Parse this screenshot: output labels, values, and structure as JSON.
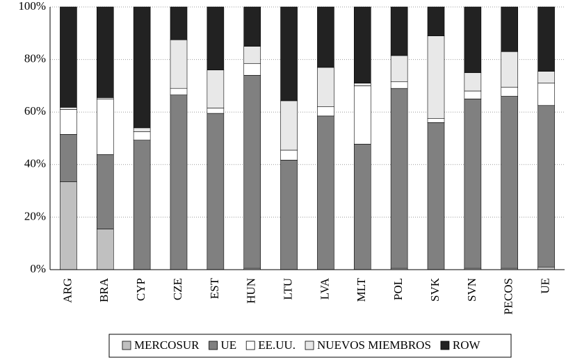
{
  "chart_data": {
    "type": "stacked_bar_percent",
    "categories": [
      "ARG",
      "BRA",
      "CYP",
      "CZE",
      "EST",
      "HUN",
      "LTU",
      "LVA",
      "MLT",
      "POL",
      "SVK",
      "SVN",
      "PECOS",
      "UE"
    ],
    "series": [
      {
        "name": "MERCOSUR",
        "color": "#c0c0c0",
        "values": [
          33.5,
          15.5,
          0,
          0,
          0,
          0.5,
          0,
          0,
          0,
          0.5,
          0,
          0.5,
          0.5,
          1
        ]
      },
      {
        "name": "UE",
        "color": "#808080",
        "values": [
          18,
          28.3,
          49.3,
          66.5,
          59.5,
          73.5,
          41.7,
          58.5,
          47.8,
          68.5,
          56,
          64.5,
          65.5,
          61.5
        ]
      },
      {
        "name": "EE.UU.",
        "color": "#ffffff",
        "values": [
          9.5,
          21.2,
          3.2,
          2.5,
          2,
          4.5,
          3.8,
          3.5,
          22.2,
          2.5,
          1.5,
          3,
          3.5,
          8.5
        ]
      },
      {
        "name": "NUEVOS MIEMBROS",
        "color": "#e8e8e8",
        "values": [
          0.8,
          0.5,
          1.5,
          18.5,
          14.5,
          6.5,
          18.8,
          15,
          1,
          10,
          31.5,
          7,
          13.5,
          4.5
        ]
      },
      {
        "name": "ROW",
        "color": "#222222",
        "values": [
          38.2,
          34.5,
          46,
          12.5,
          24,
          15,
          35.7,
          23,
          29,
          18.5,
          11,
          25,
          17,
          24.5
        ]
      }
    ],
    "ylim": [
      0,
      100
    ],
    "yticks": [
      {
        "value": 0,
        "label": "0%"
      },
      {
        "value": 20,
        "label": "20%"
      },
      {
        "value": 40,
        "label": "40%"
      },
      {
        "value": 60,
        "label": "60%"
      },
      {
        "value": 80,
        "label": "80%"
      },
      {
        "value": 100,
        "label": "100%"
      }
    ],
    "grid": true
  }
}
